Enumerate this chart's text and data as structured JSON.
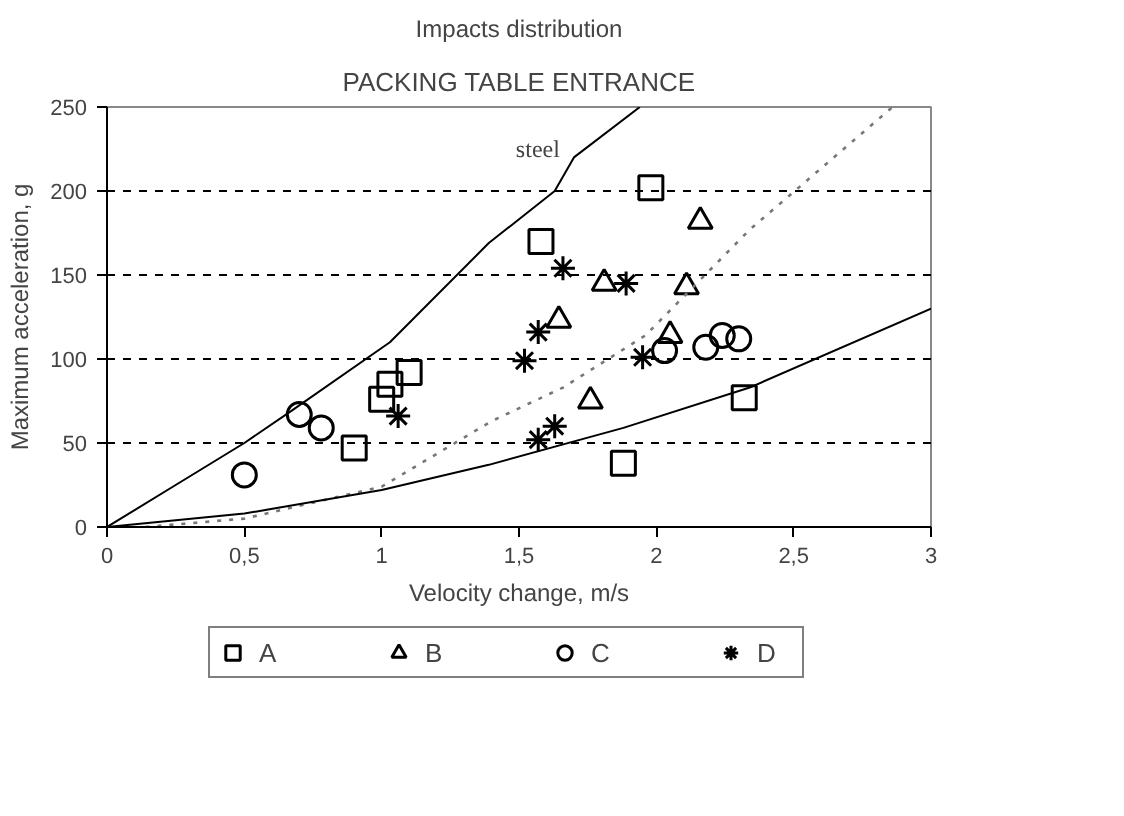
{
  "chart_data": {
    "type": "scatter",
    "title": "Impacts distribution",
    "subtitle": "PACKING TABLE ENTRANCE",
    "xlabel": "Velocity change, m/s",
    "ylabel": "Maximum acceleration, g",
    "xlim": [
      0,
      3
    ],
    "ylim": [
      0,
      250
    ],
    "xticks": [
      0,
      {
        "value": 0.5,
        "label": "0,5"
      },
      1,
      {
        "value": 1.5,
        "label": "1,5"
      },
      2,
      {
        "value": 2.5,
        "label": "2,5"
      },
      3
    ],
    "yticks": [
      0,
      50,
      100,
      150,
      200,
      250
    ],
    "grid": "y",
    "legend": "bottom",
    "series": [
      {
        "name": "A",
        "marker": "square",
        "color": "#000000",
        "x": [
          0.9,
          1.0,
          1.03,
          1.1,
          1.58,
          1.98,
          1.88,
          2.32
        ],
        "values": [
          47,
          76,
          85,
          92,
          170,
          202,
          38,
          77
        ]
      },
      {
        "name": "B",
        "marker": "triangle",
        "color": "#000000",
        "x": [
          1.645,
          1.76,
          1.81,
          2.05,
          2.11,
          2.16
        ],
        "values": [
          123,
          75,
          145,
          114,
          143,
          182
        ]
      },
      {
        "name": "C",
        "marker": "circle",
        "color": "#000000",
        "x": [
          0.5,
          0.7,
          0.78,
          2.03,
          2.18,
          2.24,
          2.3
        ],
        "values": [
          31,
          67,
          59,
          105,
          107,
          114,
          112
        ]
      },
      {
        "name": "D",
        "marker": "cross",
        "color": "#000000",
        "x": [
          1.06,
          1.52,
          1.57,
          1.66,
          1.57,
          1.63,
          1.89,
          1.95
        ],
        "values": [
          66,
          99,
          116,
          154,
          52,
          60,
          145,
          101
        ]
      },
      {
        "name": "steel",
        "type": "line",
        "marker": "none",
        "line_style": "solid",
        "color": "#000000",
        "x": [
          0,
          0.25,
          0.5,
          0.67,
          1.03,
          1.39,
          1.63,
          1.7,
          1.94
        ],
        "values": [
          0,
          25,
          50,
          69,
          110,
          169,
          200,
          220,
          250
        ]
      },
      {
        "type": "line",
        "marker": "none",
        "line_style": "dotted",
        "color": "#777777",
        "x": [
          0.14,
          0.5,
          1.0,
          1.4,
          1.66,
          1.96,
          2.34,
          2.86
        ],
        "values": [
          0,
          5,
          24,
          63,
          83,
          114,
          177,
          250
        ]
      },
      {
        "type": "line",
        "marker": "none",
        "line_style": "solid",
        "color": "#000000",
        "x": [
          0,
          0.5,
          1.0,
          1.39,
          1.88,
          2.34,
          3
        ],
        "values": [
          0,
          8,
          22,
          37,
          59,
          83,
          130
        ]
      }
    ]
  }
}
